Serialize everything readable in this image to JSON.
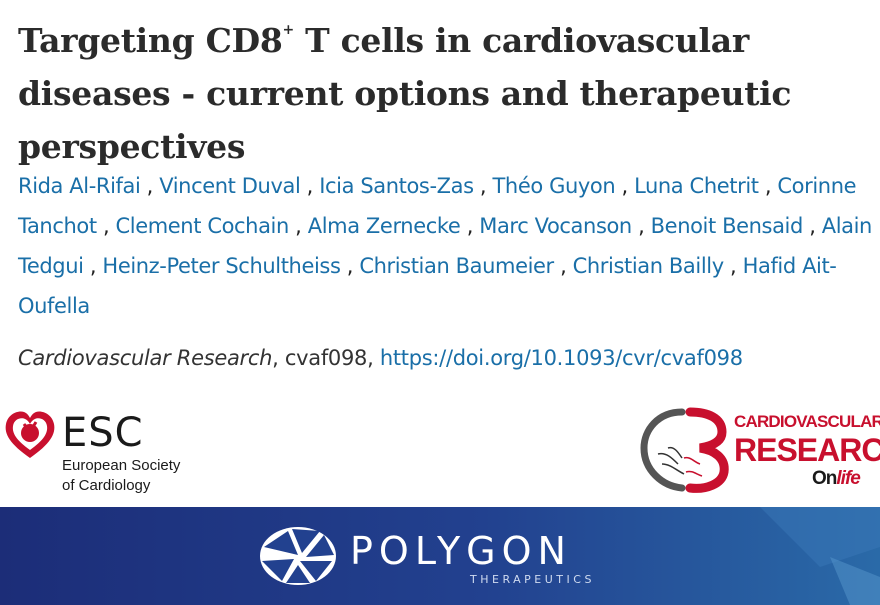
{
  "article": {
    "title_part1": "Targeting CD8",
    "title_sup": "+",
    "title_part2": " T cells in cardiovascular diseases - current options and therapeutic perspectives",
    "authors": [
      "Rida Al-Rifai",
      "Vincent Duval",
      "Icia Santos-Zas",
      "Théo Guyon",
      "Luna Chetrit",
      "Corinne Tanchot",
      "Clement Cochain",
      "Alma Zernecke",
      "Marc Vocanson",
      "Benoit Bensaid",
      "Alain Tedgui",
      "Heinz-Peter Schultheiss",
      "Christian Baumeier",
      "Christian Bailly",
      "Hafid Ait-Oufella"
    ],
    "journal": "Cardiovascular Research",
    "article_id": ", cvaf098, ",
    "doi": "https://doi.org/10.1093/cvr/cvaf098"
  },
  "logos": {
    "esc": {
      "name": "ESC",
      "sub1": "European Society",
      "sub2": "of Cardiology",
      "color": "#c8102e"
    },
    "cvr": {
      "line1": "CARDIOVASCULAR",
      "line2": "RESEARCH",
      "line3a": "On",
      "line3b": "life",
      "color": "#c8102e"
    },
    "polygon": {
      "name": "POLYGON",
      "sub": "THERAPEUTICS"
    }
  }
}
